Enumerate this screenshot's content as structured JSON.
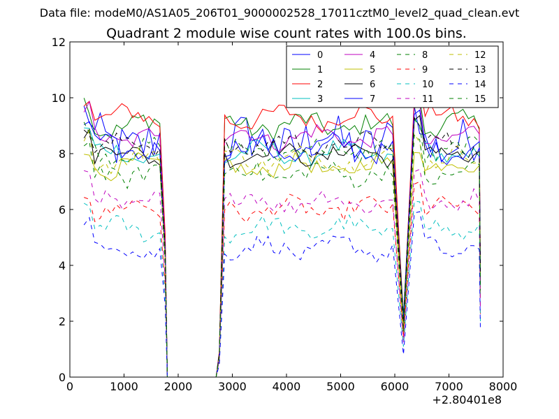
{
  "figure": {
    "suptitle": "Data file: modeM0/AS1A05_206T01_9000002528_17011cztM0_level2_quad_clean.evt"
  },
  "chart_data": {
    "type": "line",
    "title": "Quadrant 2 module wise count rates with 100.0s bins.",
    "xlabel": "",
    "ylabel": "",
    "x_offset_label": "+2.80401e8",
    "xlim": [
      0,
      8000
    ],
    "ylim": [
      0,
      12
    ],
    "xticks": [
      0,
      1000,
      2000,
      3000,
      4000,
      5000,
      6000,
      7000,
      8000
    ],
    "yticks": [
      0,
      2,
      4,
      6,
      8,
      10,
      12
    ],
    "grid": false,
    "legend_position": "top-right",
    "legend_columns": 4,
    "x_segments": [
      {
        "start": 260,
        "end": 1660
      },
      {
        "start": 2860,
        "end": 5960
      },
      {
        "start": 6360,
        "end": 7560
      }
    ],
    "gaps": [
      {
        "from": 1660,
        "down": 1760,
        "zero_from": 1800,
        "zero_to": 2700,
        "up": 2760,
        "to": 2860
      },
      {
        "from": 5960,
        "dip": 6160,
        "dip_scale": 0.22,
        "to": 6360
      },
      {
        "from": 7560,
        "end": 7580,
        "end_scale": 0.42
      }
    ],
    "series": [
      {
        "name": "0",
        "color": "#0000ff",
        "dash": "solid",
        "level": 8.4,
        "amp": 0.9
      },
      {
        "name": "1",
        "color": "#008000",
        "dash": "solid",
        "level": 9.0,
        "amp": 0.35
      },
      {
        "name": "2",
        "color": "#ff0000",
        "dash": "solid",
        "level": 9.3,
        "amp": 0.3
      },
      {
        "name": "3",
        "color": "#00bfbf",
        "dash": "solid",
        "level": 8.0,
        "amp": 0.3
      },
      {
        "name": "4",
        "color": "#bf00bf",
        "dash": "solid",
        "level": 8.6,
        "amp": 0.3
      },
      {
        "name": "5",
        "color": "#bfbf00",
        "dash": "solid",
        "level": 7.5,
        "amp": 0.3
      },
      {
        "name": "6",
        "color": "#000000",
        "dash": "solid",
        "level": 8.0,
        "amp": 0.3
      },
      {
        "name": "7",
        "color": "#0000ff",
        "dash": "solid",
        "level": 8.2,
        "amp": 0.35
      },
      {
        "name": "8",
        "color": "#008000",
        "dash": "dashed",
        "level": 8.1,
        "amp": 0.3
      },
      {
        "name": "9",
        "color": "#ff0000",
        "dash": "dashed",
        "level": 6.0,
        "amp": 0.3
      },
      {
        "name": "10",
        "color": "#00bfbf",
        "dash": "dashed",
        "level": 5.3,
        "amp": 0.3
      },
      {
        "name": "11",
        "color": "#bf00bf",
        "dash": "dashed",
        "level": 6.3,
        "amp": 0.3
      },
      {
        "name": "12",
        "color": "#bfbf00",
        "dash": "dashed",
        "level": 7.8,
        "amp": 0.3
      },
      {
        "name": "13",
        "color": "#000000",
        "dash": "dashed",
        "level": 8.3,
        "amp": 0.3
      },
      {
        "name": "14",
        "color": "#0000ff",
        "dash": "dashed",
        "level": 4.6,
        "amp": 0.3
      },
      {
        "name": "15",
        "color": "#008000",
        "dash": "dashed",
        "level": 7.3,
        "amp": 0.35
      }
    ]
  }
}
